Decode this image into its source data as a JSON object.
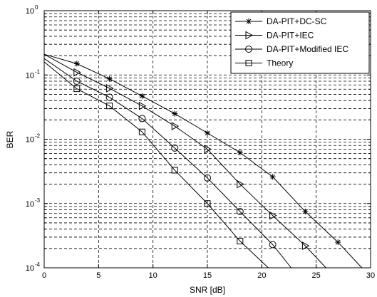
{
  "chart_data": {
    "type": "line",
    "title": "",
    "xlabel": "SNR [dB]",
    "ylabel": "BER",
    "xlim": [
      0,
      30
    ],
    "ylim": [
      0.0001,
      1
    ],
    "y_scale": "log",
    "grid": true,
    "legend_position": "top-right",
    "x_ticks": [
      "0",
      "5",
      "10",
      "15",
      "20",
      "25",
      "30"
    ],
    "x_tick_values": [
      0,
      5,
      10,
      15,
      20,
      25,
      30
    ],
    "y_ticks": [
      {
        "base": "10",
        "exp": "0",
        "value": 1
      },
      {
        "base": "10",
        "exp": "-1",
        "value": 0.1
      },
      {
        "base": "10",
        "exp": "-2",
        "value": 0.01
      },
      {
        "base": "10",
        "exp": "-3",
        "value": 0.001
      },
      {
        "base": "10",
        "exp": "-4",
        "value": 0.0001
      }
    ],
    "series": [
      {
        "name": "DA-PIT+DC-SC",
        "marker": "star",
        "curve_x": [
          0,
          3,
          6,
          9,
          12,
          15,
          18,
          21,
          24,
          27,
          29.2
        ],
        "curve_y": [
          0.21,
          0.15,
          0.087,
          0.047,
          0.025,
          0.0125,
          0.0062,
          0.0026,
          0.00075,
          0.00025,
          0.0001
        ],
        "marker_x": [
          3,
          6,
          9,
          12,
          15,
          18,
          21,
          24,
          27
        ],
        "marker_y": [
          0.15,
          0.087,
          0.047,
          0.025,
          0.0125,
          0.0062,
          0.0026,
          0.00075,
          0.00025
        ]
      },
      {
        "name": "DA-PIT+IEC",
        "marker": "triangle-right",
        "curve_x": [
          0,
          3,
          6,
          9,
          12,
          15,
          18,
          21,
          24,
          25.9
        ],
        "curve_y": [
          0.21,
          0.11,
          0.062,
          0.033,
          0.016,
          0.007,
          0.002,
          0.00065,
          0.00022,
          0.0001
        ],
        "marker_x": [
          3,
          6,
          9,
          12,
          15,
          18,
          21,
          24
        ],
        "marker_y": [
          0.11,
          0.062,
          0.033,
          0.016,
          0.007,
          0.002,
          0.00065,
          0.00022
        ]
      },
      {
        "name": "DA-PIT+Modified IEC",
        "marker": "circle",
        "curve_x": [
          0,
          3,
          6,
          9,
          12,
          15,
          18,
          21,
          22.7
        ],
        "curve_y": [
          0.18,
          0.08,
          0.045,
          0.021,
          0.0073,
          0.0025,
          0.00075,
          0.00023,
          0.0001
        ],
        "marker_x": [
          3,
          6,
          9,
          12,
          15,
          18,
          21
        ],
        "marker_y": [
          0.08,
          0.045,
          0.021,
          0.0073,
          0.0025,
          0.00075,
          0.00023
        ]
      },
      {
        "name": "Theory",
        "marker": "square",
        "curve_x": [
          0,
          3,
          6,
          9,
          12,
          15,
          18,
          20.6
        ],
        "curve_y": [
          0.16,
          0.061,
          0.033,
          0.013,
          0.0033,
          0.001,
          0.00026,
          0.0001
        ],
        "marker_x": [
          3,
          6,
          9,
          12,
          15,
          18
        ],
        "marker_y": [
          0.061,
          0.033,
          0.013,
          0.0033,
          0.001,
          0.00026
        ]
      }
    ]
  }
}
